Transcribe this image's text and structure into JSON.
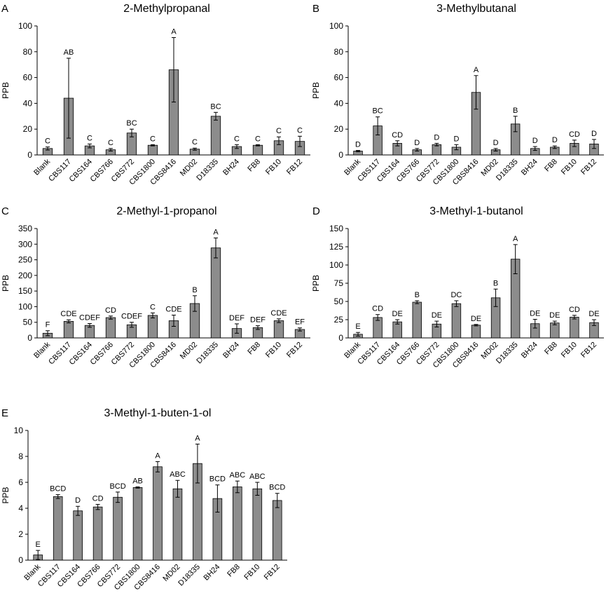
{
  "colors": {
    "bar": "#8c8c8c",
    "axis": "#000000",
    "error": "#000000"
  },
  "chart_data": [
    {
      "panel": "A",
      "type": "bar",
      "title": "2-Methylpropanal",
      "ylabel": "PPB",
      "xlabel": "",
      "ylim": [
        0,
        100
      ],
      "yticks": [
        0,
        20,
        40,
        60,
        80,
        100
      ],
      "categories": [
        "Blank",
        "CBS117",
        "CBS164",
        "CBS766",
        "CBS772",
        "CBS1800",
        "CBS8416",
        "MD02",
        "D18335",
        "BH24",
        "FB8",
        "FB10",
        "FB12"
      ],
      "values": [
        5,
        44,
        7,
        4,
        17,
        7.5,
        66,
        4.5,
        30,
        6.5,
        7.5,
        11,
        10.5
      ],
      "errors": [
        1.2,
        31,
        1.5,
        1,
        3,
        0.5,
        25,
        0.8,
        3,
        1.5,
        0.5,
        3,
        4
      ],
      "letters": [
        "C",
        "AB",
        "C",
        "C",
        "BC",
        "C",
        "A",
        "C",
        "BC",
        "C",
        "C",
        "C",
        "C"
      ],
      "grid": false,
      "legend": "none"
    },
    {
      "panel": "B",
      "type": "bar",
      "title": "3-Methylbutanal",
      "ylabel": "PPB",
      "xlabel": "",
      "ylim": [
        0,
        100
      ],
      "yticks": [
        0,
        20,
        40,
        60,
        80,
        100
      ],
      "categories": [
        "Blank",
        "CBS117",
        "CBS164",
        "CBS766",
        "CBS772",
        "CBS1800",
        "CBS8416",
        "MD02",
        "D18335",
        "BH24",
        "FB8",
        "FB10",
        "FB12"
      ],
      "values": [
        3,
        22.5,
        9,
        4,
        8,
        6,
        48.5,
        4,
        24,
        5,
        6,
        9,
        8.5
      ],
      "errors": [
        0.5,
        7,
        2,
        1,
        1,
        2,
        13,
        1,
        6,
        1.5,
        1,
        2.5,
        3.5
      ],
      "letters": [
        "D",
        "BC",
        "CD",
        "D",
        "D",
        "D",
        "A",
        "D",
        "B",
        "D",
        "D",
        "CD",
        "D"
      ],
      "grid": false,
      "legend": "none"
    },
    {
      "panel": "C",
      "type": "bar",
      "title": "2-Methyl-1-propanol",
      "ylabel": "PPB",
      "xlabel": "",
      "ylim": [
        0,
        350
      ],
      "yticks": [
        0,
        50,
        100,
        150,
        200,
        250,
        300,
        350
      ],
      "categories": [
        "Blank",
        "CBS117",
        "CBS164",
        "CBS766",
        "CBS772",
        "CBS1800",
        "CBS8416",
        "MD02",
        "D18335",
        "BH24",
        "FB8",
        "FB10",
        "FB12"
      ],
      "values": [
        15,
        53,
        40,
        65,
        42,
        72,
        55,
        110,
        288,
        30,
        33,
        55,
        27
      ],
      "errors": [
        8,
        5,
        6,
        5,
        8,
        8,
        18,
        25,
        32,
        15,
        6,
        6,
        5
      ],
      "letters": [
        "F",
        "CDE",
        "CDEF",
        "CD",
        "CDEF",
        "C",
        "CDE",
        "B",
        "A",
        "DEF",
        "DEF",
        "CDE",
        "EF"
      ],
      "grid": false,
      "legend": "none"
    },
    {
      "panel": "D",
      "type": "bar",
      "title": "3-Methyl-1-butanol",
      "ylabel": "PPB",
      "xlabel": "",
      "ylim": [
        0,
        150
      ],
      "yticks": [
        0,
        25,
        50,
        75,
        100,
        125,
        150
      ],
      "categories": [
        "Blank",
        "CBS117",
        "CBS164",
        "CBS766",
        "CBS772",
        "CBS1800",
        "CBS8416",
        "MD02",
        "D18335",
        "BH24",
        "FB8",
        "FB10",
        "FB12"
      ],
      "values": [
        5,
        28,
        22,
        49,
        19,
        47,
        17.5,
        55,
        108,
        19.5,
        20.5,
        28.5,
        21
      ],
      "errors": [
        2.5,
        4,
        3,
        2,
        4,
        4,
        1,
        12,
        20,
        6,
        2.5,
        2.5,
        4
      ],
      "letters": [
        "E",
        "CD",
        "DE",
        "B",
        "DE",
        "DC",
        "DE",
        "B",
        "A",
        "DE",
        "DE",
        "CD",
        "DE"
      ],
      "grid": false,
      "legend": "none"
    },
    {
      "panel": "E",
      "type": "bar",
      "title": "3-Methyl-1-buten-1-ol",
      "ylabel": "PPB",
      "xlabel": "",
      "ylim": [
        0,
        10
      ],
      "yticks": [
        0,
        2,
        4,
        6,
        8,
        10
      ],
      "categories": [
        "Blank",
        "CBS117",
        "CBS164",
        "CBS766",
        "CBS772",
        "CBS1800",
        "CBS8416",
        "MD02",
        "D18335",
        "BH24",
        "FB8",
        "FB10",
        "FB12"
      ],
      "values": [
        0.4,
        4.9,
        3.8,
        4.1,
        4.85,
        5.6,
        7.2,
        5.5,
        7.45,
        4.75,
        5.65,
        5.5,
        4.6
      ],
      "errors": [
        0.35,
        0.15,
        0.35,
        0.2,
        0.4,
        0.05,
        0.4,
        0.65,
        1.5,
        1.05,
        0.45,
        0.5,
        0.55
      ],
      "letters": [
        "E",
        "BCD",
        "D",
        "CD",
        "BCD",
        "AB",
        "A",
        "ABC",
        "A",
        "BCD",
        "ABC",
        "ABC",
        "BCD"
      ],
      "grid": false,
      "legend": "none"
    }
  ]
}
